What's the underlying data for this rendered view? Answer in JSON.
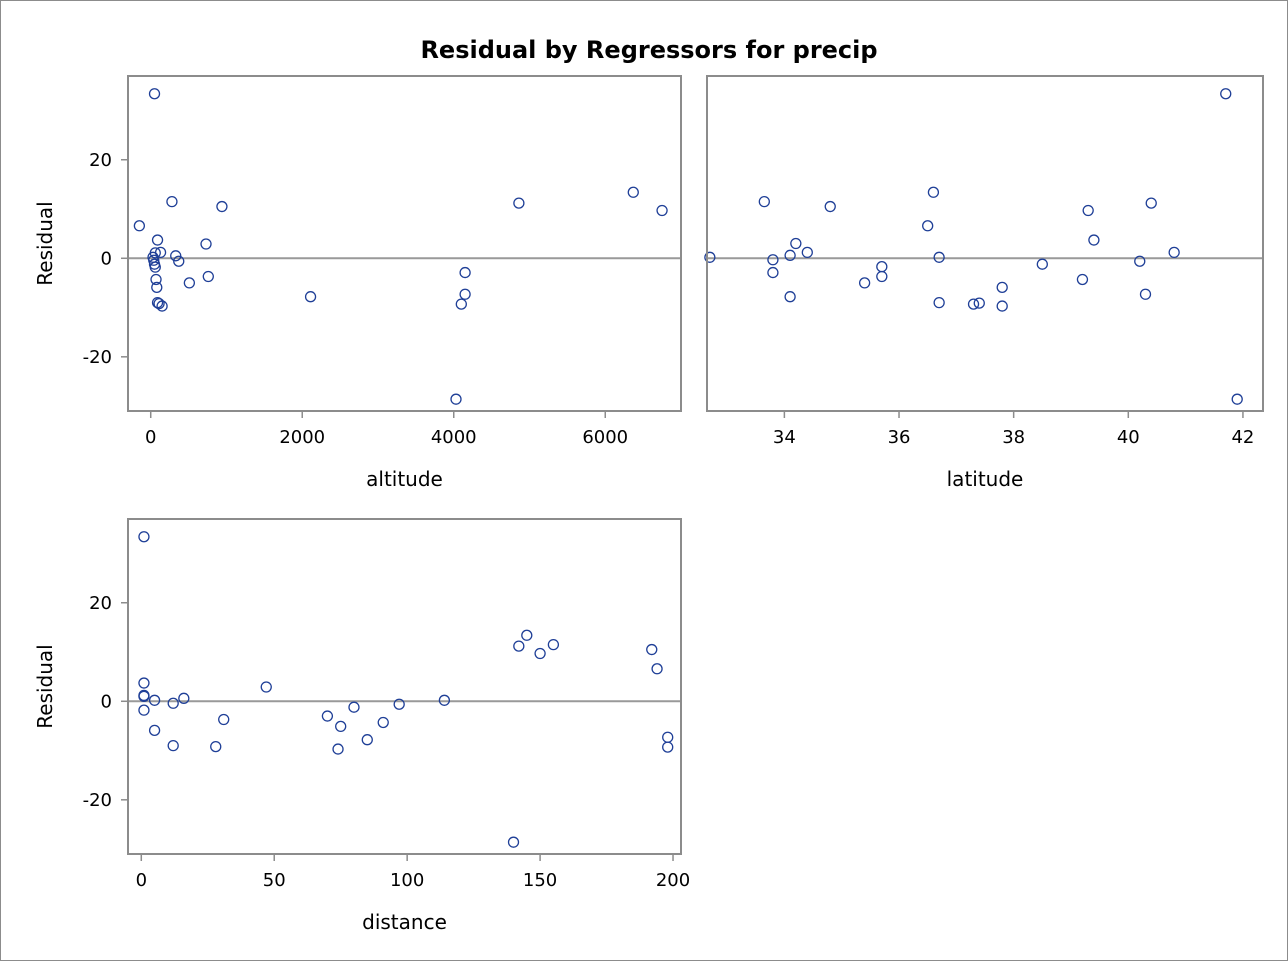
{
  "title": "Residual by Regressors for precip",
  "colors": {
    "marker": "#1f3f97",
    "axis": "#8c8c8c",
    "refline": "#999999",
    "text": "#000000"
  },
  "chart_data": [
    {
      "type": "scatter",
      "xlabel": "altitude",
      "ylabel": "Residual",
      "xlim": [
        -300,
        7000
      ],
      "ylim": [
        -31,
        37
      ],
      "xticks": [
        0,
        2000,
        4000,
        6000
      ],
      "xtick_labels": [
        "0",
        "2000",
        "4000",
        "6000"
      ],
      "yticks": [
        20,
        0,
        -20
      ],
      "ytick_labels": [
        "20",
        "0",
        "-20"
      ],
      "reference_line_y": 0,
      "grid": false,
      "points": [
        [
          -150,
          6.6
        ],
        [
          50,
          33.4
        ],
        [
          280,
          11.5
        ],
        [
          940,
          10.5
        ],
        [
          730,
          2.9
        ],
        [
          90,
          3.7
        ],
        [
          60,
          1.1
        ],
        [
          30,
          0.2
        ],
        [
          40,
          -0.4
        ],
        [
          50,
          -1.2
        ],
        [
          60,
          -1.8
        ],
        [
          130,
          1.2
        ],
        [
          330,
          0.5
        ],
        [
          370,
          -0.6
        ],
        [
          760,
          -3.7
        ],
        [
          70,
          -4.3
        ],
        [
          80,
          -5.9
        ],
        [
          510,
          -5.0
        ],
        [
          90,
          -9.0
        ],
        [
          110,
          -9.2
        ],
        [
          150,
          -9.7
        ],
        [
          2110,
          -7.8
        ],
        [
          4150,
          -2.9
        ],
        [
          4150,
          -7.3
        ],
        [
          4100,
          -9.3
        ],
        [
          4030,
          -28.6
        ],
        [
          4860,
          11.2
        ],
        [
          6370,
          13.4
        ],
        [
          6750,
          9.7
        ]
      ]
    },
    {
      "type": "scatter",
      "xlabel": "latitude",
      "ylabel": "",
      "xlim": [
        32.65,
        42.35
      ],
      "ylim": [
        -31,
        37
      ],
      "xticks": [
        34,
        36,
        38,
        40,
        42
      ],
      "xtick_labels": [
        "34",
        "36",
        "38",
        "40",
        "42"
      ],
      "yticks": [],
      "ytick_labels": [],
      "reference_line_y": 0,
      "grid": false,
      "points": [
        [
          32.7,
          0.2
        ],
        [
          33.65,
          11.5
        ],
        [
          33.8,
          -0.3
        ],
        [
          33.8,
          -2.9
        ],
        [
          34.1,
          0.6
        ],
        [
          34.2,
          3.0
        ],
        [
          34.4,
          1.2
        ],
        [
          34.1,
          -7.8
        ],
        [
          34.8,
          10.5
        ],
        [
          35.4,
          -5.0
        ],
        [
          35.7,
          -1.7
        ],
        [
          35.7,
          -3.7
        ],
        [
          36.5,
          6.6
        ],
        [
          36.6,
          13.4
        ],
        [
          36.7,
          0.2
        ],
        [
          36.7,
          -9.0
        ],
        [
          37.3,
          -9.3
        ],
        [
          37.4,
          -9.1
        ],
        [
          37.8,
          -5.9
        ],
        [
          37.8,
          -9.7
        ],
        [
          38.5,
          -1.2
        ],
        [
          39.2,
          -4.3
        ],
        [
          39.3,
          9.7
        ],
        [
          39.4,
          3.7
        ],
        [
          40.2,
          -0.6
        ],
        [
          40.3,
          -7.3
        ],
        [
          40.4,
          11.2
        ],
        [
          40.8,
          1.2
        ],
        [
          41.7,
          33.4
        ],
        [
          41.9,
          -28.6
        ]
      ]
    },
    {
      "type": "scatter",
      "xlabel": "distance",
      "ylabel": "Residual",
      "xlim": [
        -5,
        203
      ],
      "ylim": [
        -31,
        37
      ],
      "xticks": [
        0,
        50,
        100,
        150,
        200
      ],
      "xtick_labels": [
        "0",
        "50",
        "100",
        "150",
        "200"
      ],
      "yticks": [
        20,
        0,
        -20
      ],
      "ytick_labels": [
        "20",
        "0",
        "-20"
      ],
      "reference_line_y": 0,
      "grid": false,
      "points": [
        [
          1,
          33.4
        ],
        [
          1,
          3.7
        ],
        [
          1,
          1.2
        ],
        [
          1,
          1.0
        ],
        [
          1,
          -1.8
        ],
        [
          5,
          0.2
        ],
        [
          5,
          -5.9
        ],
        [
          12,
          -0.4
        ],
        [
          12,
          -9.0
        ],
        [
          16,
          0.6
        ],
        [
          28,
          -9.2
        ],
        [
          31,
          -3.7
        ],
        [
          47,
          2.9
        ],
        [
          70,
          -3.0
        ],
        [
          74,
          -9.7
        ],
        [
          75,
          -5.1
        ],
        [
          80,
          -1.2
        ],
        [
          85,
          -7.8
        ],
        [
          91,
          -4.3
        ],
        [
          97,
          -0.6
        ],
        [
          114,
          0.2
        ],
        [
          140,
          -28.6
        ],
        [
          142,
          11.2
        ],
        [
          145,
          13.4
        ],
        [
          150,
          9.7
        ],
        [
          155,
          11.5
        ],
        [
          192,
          10.5
        ],
        [
          194,
          6.6
        ],
        [
          198,
          -7.3
        ],
        [
          198,
          -9.3
        ]
      ]
    }
  ]
}
